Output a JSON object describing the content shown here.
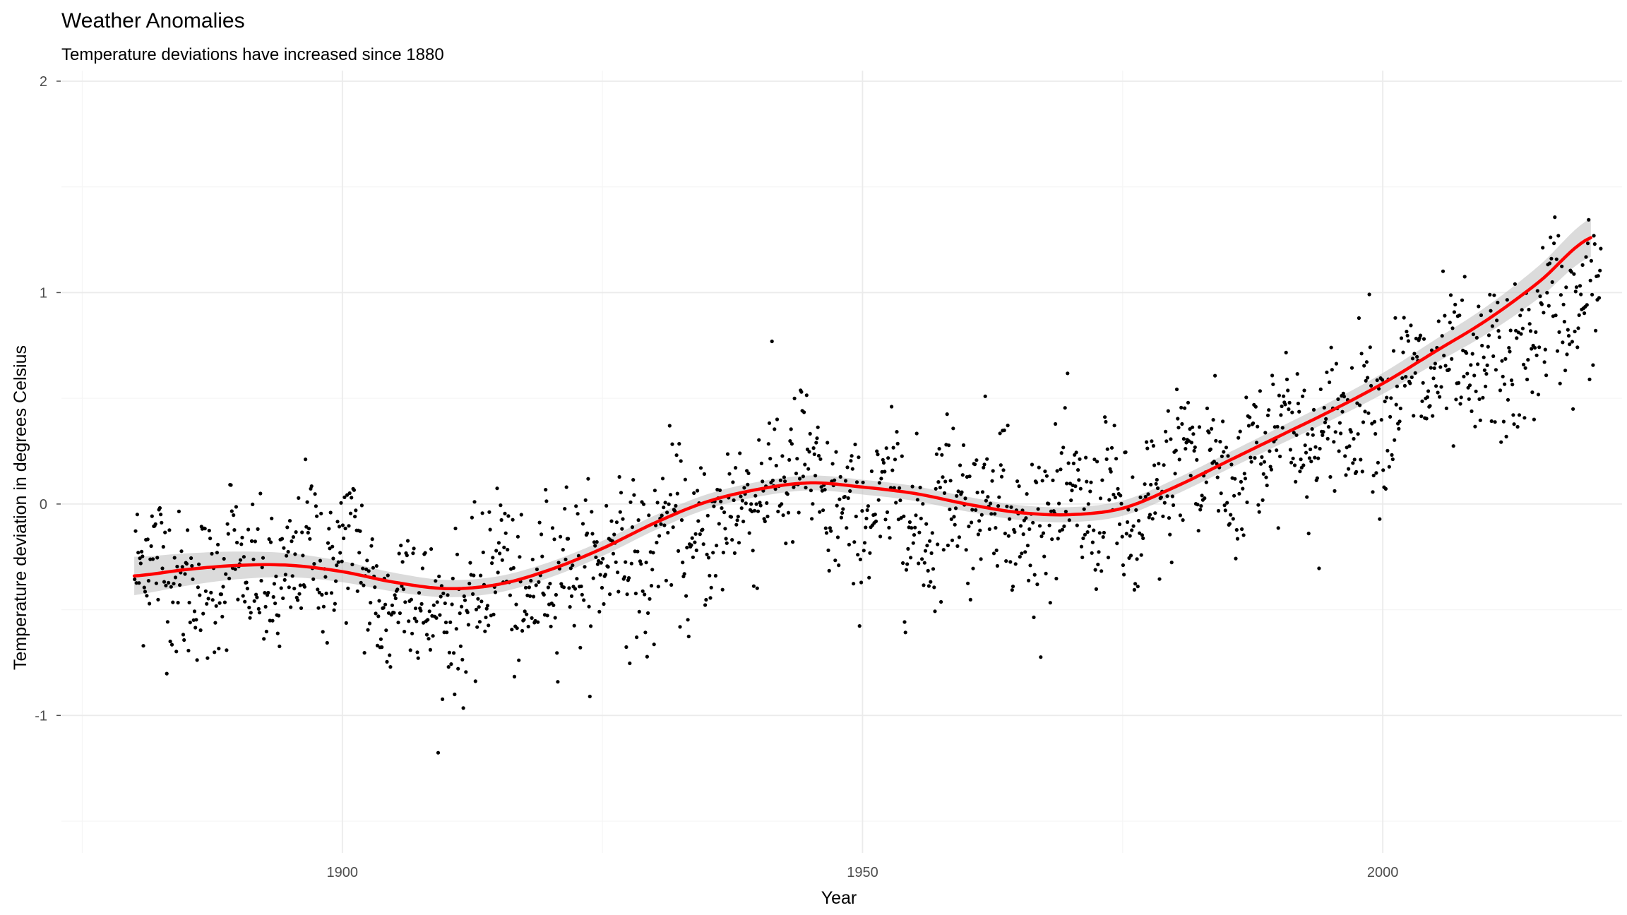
{
  "chart_data": {
    "type": "scatter",
    "title": "Weather Anomalies",
    "subtitle": "Temperature deviations have increased since 1880",
    "xlabel": "Year",
    "ylabel": "Temperature deviation in degrees Celsius",
    "xlim": [
      1873,
      2023
    ],
    "ylim": [
      -1.65,
      2.05
    ],
    "x_ticks": [
      1900,
      1950,
      2000
    ],
    "x_minor_ticks": [
      1875,
      1925,
      1975,
      2025
    ],
    "y_ticks": [
      -1,
      0,
      1,
      2
    ],
    "y_tick_labels": [
      "-1",
      "0",
      "1",
      "2"
    ],
    "y_minor_ticks": [
      -1.5,
      -0.5,
      0.5,
      1.5
    ],
    "x_tick_labels": [
      "1900",
      "1950",
      "2000"
    ],
    "grid": true,
    "legend": "none",
    "colors": {
      "points": "#000000",
      "smooth_line": "#ff0000",
      "confidence_band": "#bdbdbd",
      "grid_major": "#ebebeb",
      "grid_minor": "#f5f5f5"
    },
    "series": [
      {
        "type": "scatter",
        "description": "Monthly anomalies 1880-2020 (approx. 12 points per year)",
        "points_per_year": 12,
        "x_start": 1880,
        "x_end": 2020,
        "annual_means": [
          -0.3,
          -0.22,
          -0.25,
          -0.33,
          -0.4,
          -0.4,
          -0.38,
          -0.42,
          -0.32,
          -0.18,
          -0.42,
          -0.32,
          -0.4,
          -0.45,
          -0.38,
          -0.32,
          -0.18,
          -0.15,
          -0.38,
          -0.22,
          -0.15,
          -0.2,
          -0.4,
          -0.48,
          -0.55,
          -0.38,
          -0.3,
          -0.5,
          -0.52,
          -0.55,
          -0.52,
          -0.55,
          -0.48,
          -0.45,
          -0.25,
          -0.2,
          -0.45,
          -0.55,
          -0.4,
          -0.3,
          -0.32,
          -0.22,
          -0.32,
          -0.3,
          -0.32,
          -0.25,
          -0.1,
          -0.28,
          -0.25,
          -0.4,
          -0.1,
          -0.05,
          -0.12,
          -0.3,
          -0.12,
          -0.18,
          -0.12,
          0.02,
          0.02,
          -0.02,
          0.1,
          0.18,
          0.08,
          0.12,
          0.25,
          0.08,
          -0.05,
          -0.02,
          -0.05,
          -0.1,
          -0.05,
          -0.02,
          0.02,
          0.12,
          -0.15,
          -0.1,
          -0.2,
          0.05,
          0.08,
          0.05,
          -0.05,
          0.08,
          0.08,
          0.1,
          -0.15,
          -0.15,
          -0.1,
          0.0,
          -0.05,
          0.05,
          0.0,
          -0.05,
          -0.1,
          0.15,
          -0.05,
          -0.12,
          -0.2,
          0.0,
          0.02,
          0.1,
          0.25,
          0.3,
          0.05,
          0.3,
          0.15,
          0.05,
          0.12,
          0.32,
          0.25,
          0.4,
          0.45,
          0.4,
          0.2,
          0.22,
          0.3,
          0.45,
          0.35,
          0.45,
          0.6,
          0.4,
          0.42,
          0.55,
          0.62,
          0.6,
          0.52,
          0.68,
          0.62,
          0.65,
          0.52,
          0.62,
          0.72,
          0.62,
          0.64,
          0.68,
          0.75,
          0.9,
          1.01,
          0.92,
          0.85,
          0.98,
          1.02
        ],
        "monthly_spread": 0.18
      },
      {
        "type": "line",
        "description": "Smoothed trend with confidence band",
        "x": [
          1880,
          1885,
          1890,
          1895,
          1900,
          1905,
          1910,
          1915,
          1920,
          1925,
          1930,
          1935,
          1940,
          1945,
          1950,
          1955,
          1960,
          1965,
          1970,
          1975,
          1980,
          1985,
          1990,
          1995,
          2000,
          2005,
          2010,
          2015,
          2020
        ],
        "y": [
          -0.34,
          -0.31,
          -0.29,
          -0.29,
          -0.32,
          -0.37,
          -0.4,
          -0.38,
          -0.31,
          -0.21,
          -0.09,
          0.01,
          0.07,
          0.1,
          0.08,
          0.05,
          0.0,
          -0.04,
          -0.05,
          -0.02,
          0.08,
          0.2,
          0.32,
          0.44,
          0.57,
          0.72,
          0.87,
          1.05,
          1.26
        ],
        "band_halfwidth": 0.035
      }
    ]
  }
}
